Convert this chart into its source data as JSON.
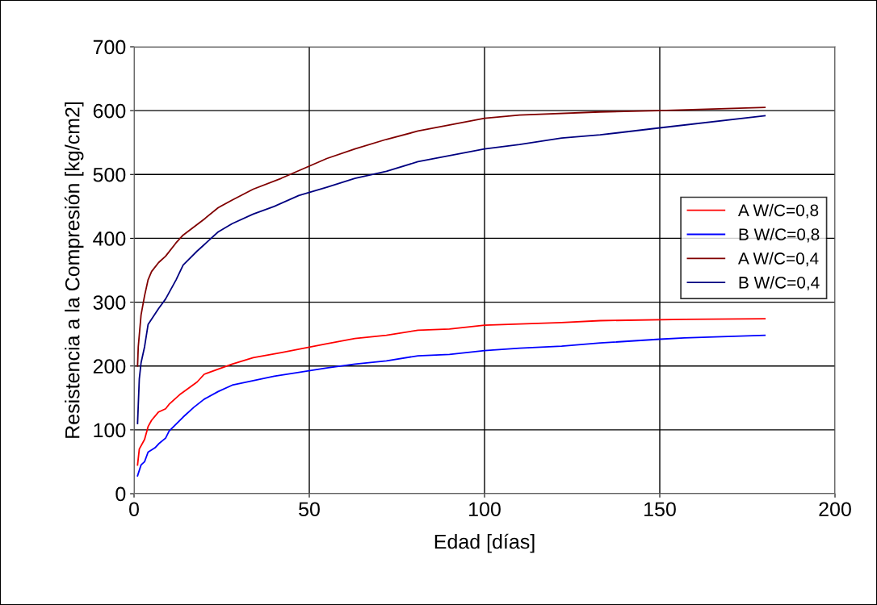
{
  "chart_data": {
    "type": "line",
    "xlabel": "Edad [días]",
    "ylabel": "Resistencia a la Compresión [kg/cm2]",
    "xlim": [
      0,
      200
    ],
    "xticks": [
      0,
      50,
      100,
      150,
      200
    ],
    "ylim": [
      0,
      700
    ],
    "yticks": [
      0,
      100,
      200,
      300,
      400,
      500,
      600,
      700
    ],
    "grid": true,
    "legend": "right",
    "marker": "none",
    "line_style": "solid",
    "series": [
      {
        "name": "A W/C=0,8",
        "color": "#ff0000",
        "x": [
          1,
          1.5,
          3,
          4,
          5,
          7,
          9,
          10,
          13,
          15,
          18,
          20,
          24,
          28,
          34,
          42,
          55,
          63,
          72,
          81,
          90,
          100,
          122,
          133,
          157,
          180
        ],
        "values": [
          45,
          70,
          85,
          105,
          115,
          128,
          133,
          140,
          155,
          163,
          175,
          187,
          195,
          203,
          213,
          221,
          235,
          243,
          248,
          256,
          258,
          264,
          268,
          271,
          273,
          274
        ]
      },
      {
        "name": "B W/C=0,8",
        "color": "#0000ff",
        "x": [
          1,
          2,
          3,
          4,
          6,
          7,
          9,
          10,
          14,
          17,
          20,
          24,
          28,
          34,
          40,
          47,
          55,
          63,
          72,
          81,
          90,
          100,
          110,
          122,
          133,
          150,
          157,
          180
        ],
        "values": [
          28,
          45,
          50,
          65,
          72,
          78,
          87,
          98,
          120,
          135,
          148,
          160,
          170,
          177,
          184,
          190,
          197,
          203,
          208,
          216,
          218,
          224,
          228,
          231,
          236,
          242,
          244,
          248
        ]
      },
      {
        "name": "A W/C=0,4",
        "color": "#800000",
        "x": [
          1,
          1.2,
          2,
          3,
          4,
          5,
          7,
          9,
          12,
          14,
          20,
          24,
          28,
          34,
          42,
          55,
          63,
          72,
          81,
          100,
          110,
          133,
          150,
          180
        ],
        "values": [
          200,
          230,
          280,
          310,
          335,
          348,
          362,
          372,
          393,
          405,
          430,
          448,
          460,
          477,
          494,
          525,
          540,
          555,
          568,
          588,
          593,
          598,
          600,
          605
        ]
      },
      {
        "name": "B W/C=0,4",
        "color": "#000080",
        "x": [
          1,
          1.5,
          2,
          3,
          4,
          7,
          9,
          12,
          14,
          18,
          22,
          24,
          28,
          34,
          40,
          47,
          55,
          63,
          72,
          81,
          100,
          110,
          122,
          133,
          150,
          180
        ],
        "values": [
          110,
          180,
          205,
          230,
          265,
          290,
          305,
          335,
          358,
          380,
          400,
          410,
          423,
          438,
          450,
          467,
          480,
          494,
          505,
          520,
          540,
          547,
          557,
          562,
          573,
          592
        ]
      }
    ]
  }
}
